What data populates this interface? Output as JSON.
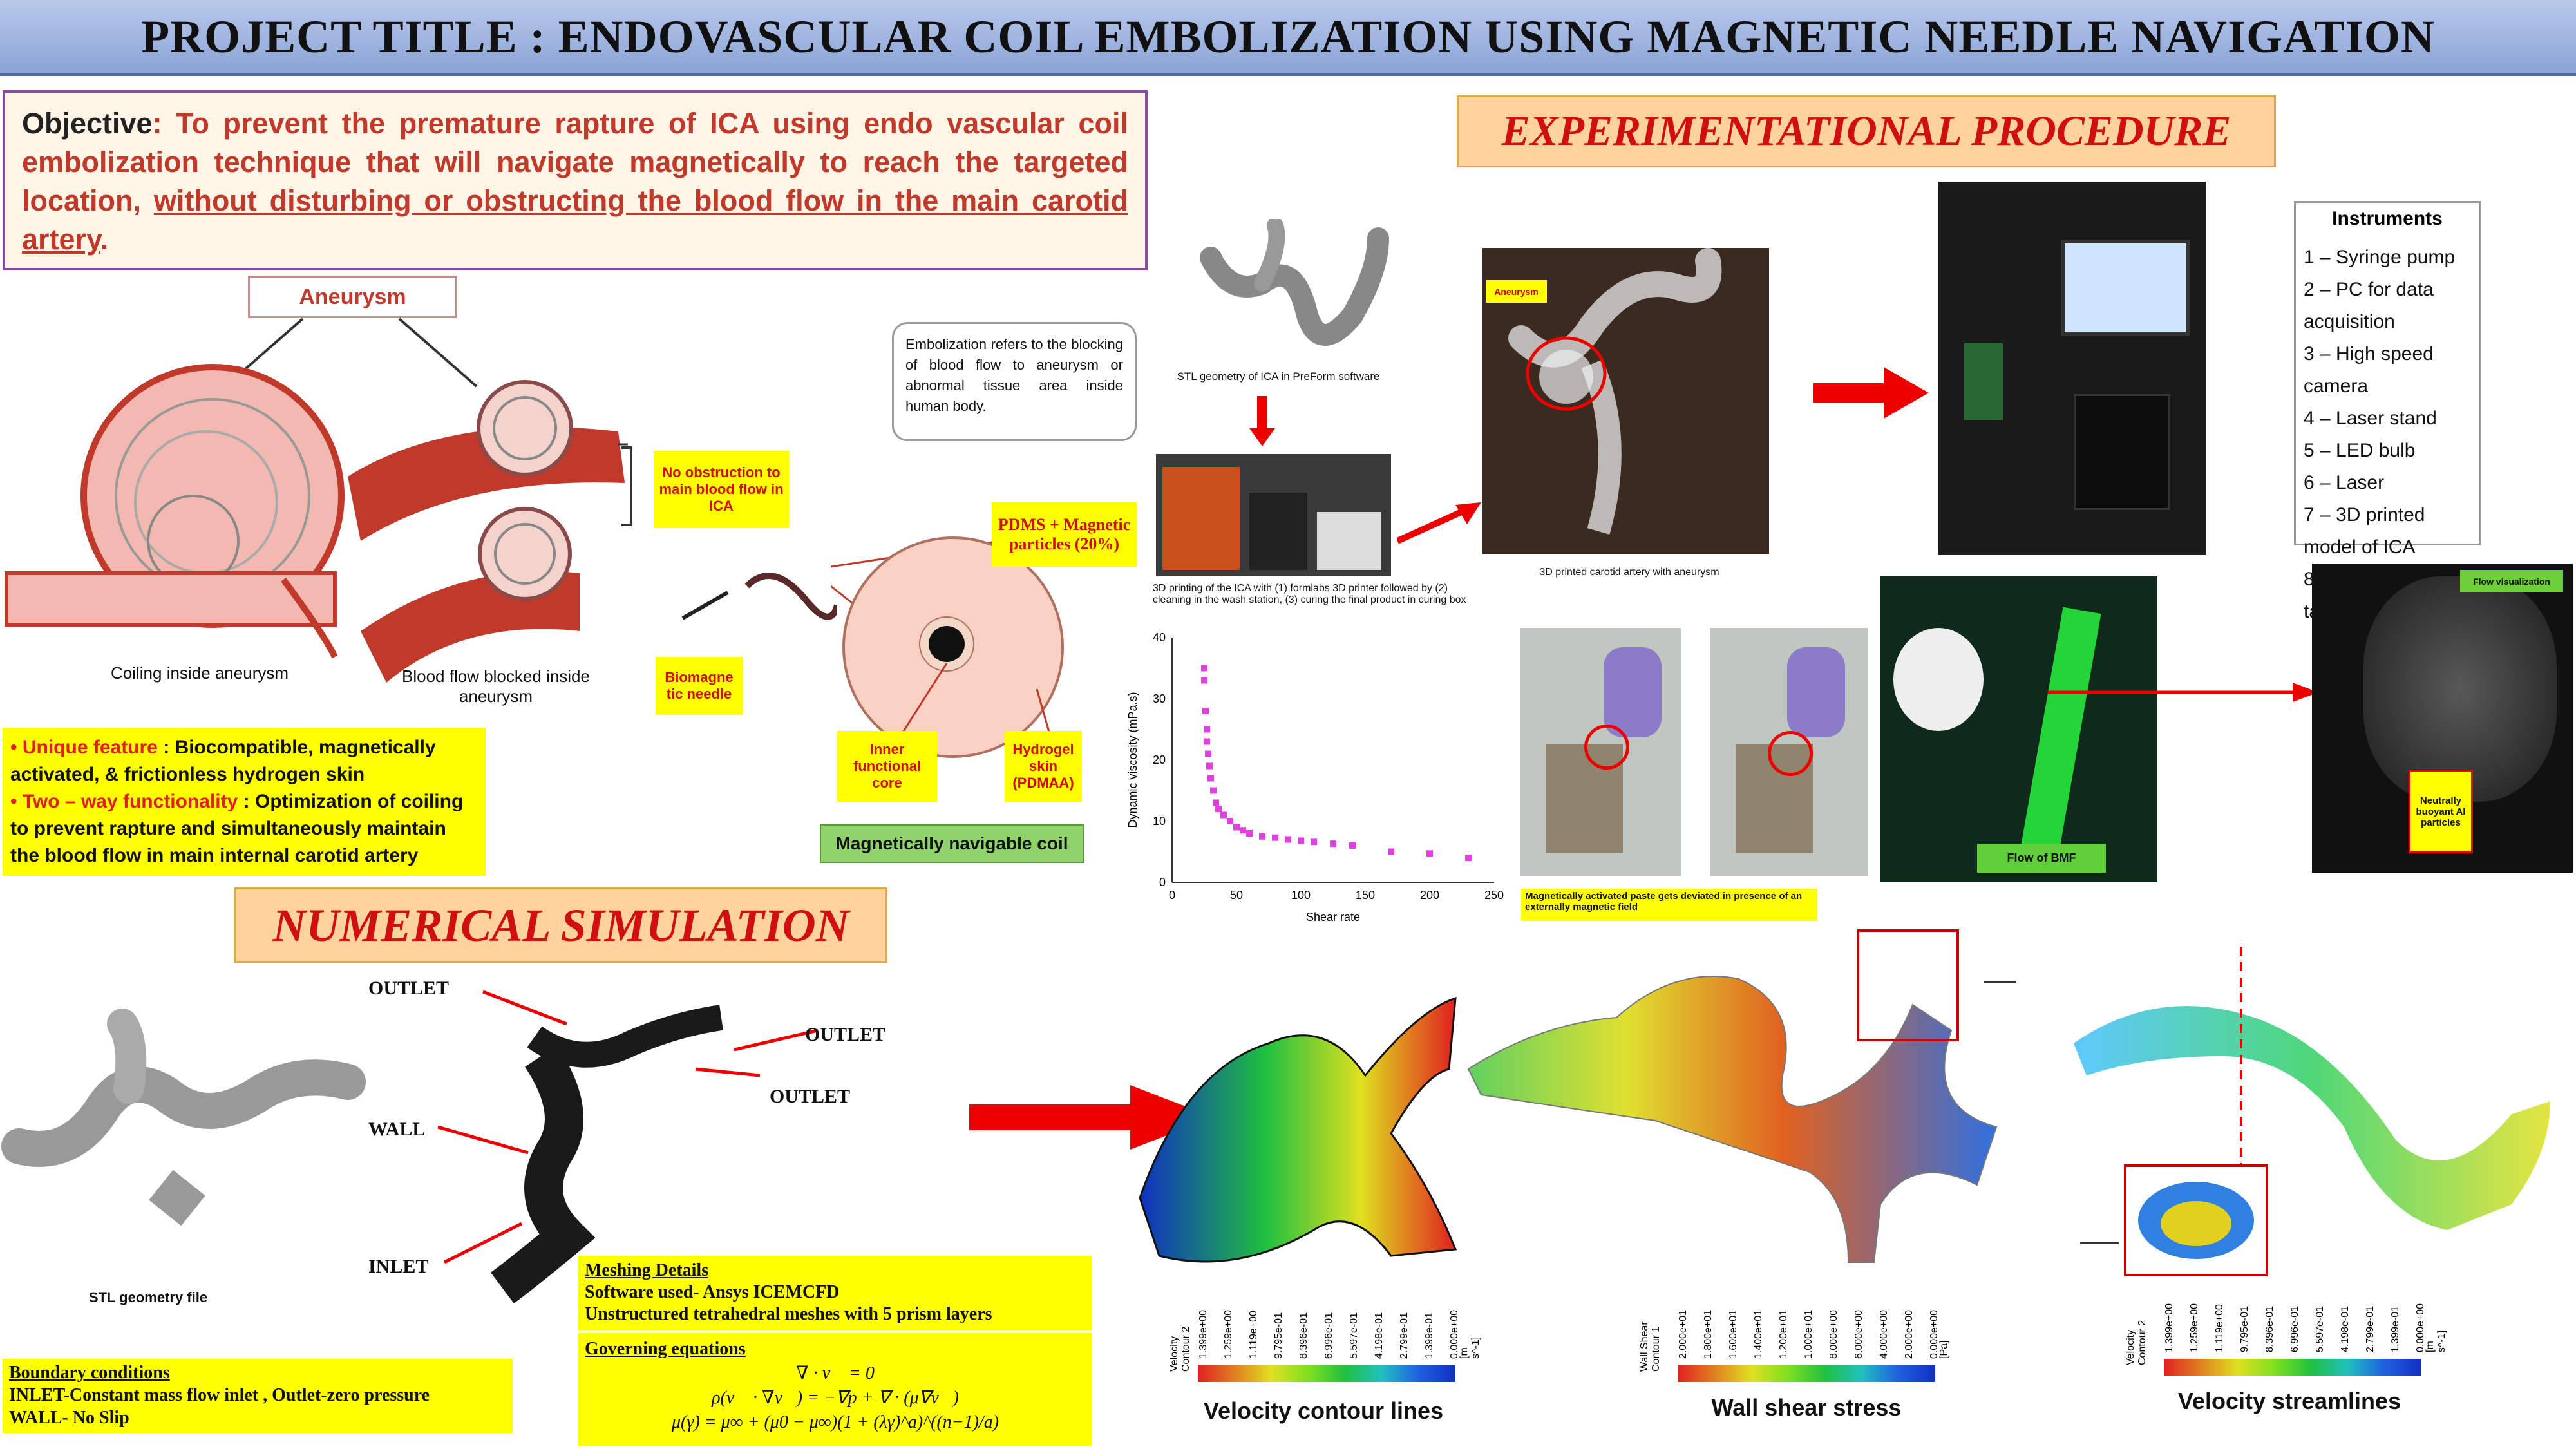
{
  "header": {
    "title": "PROJECT TITLE : ENDOVASCULAR COIL EMBOLIZATION USING MAGNETIC NEEDLE NAVIGATION"
  },
  "objective": {
    "label": "Objective",
    "text": ": To prevent the premature rapture of ICA using endo vascular coil embolization technique that will navigate magnetically to reach the targeted location, ",
    "underlined": "without disturbing or obstructing the blood flow in the main carotid artery",
    "end": "."
  },
  "aneurysm": {
    "title": "Aneurysm",
    "coiling_caption": "Coiling inside aneurysm",
    "blocked_caption": "Blood flow blocked inside aneurysm",
    "no_obstruction": "No obstruction to main blood flow in ICA",
    "biomagnetic_needle": "Biomagne tic needle"
  },
  "coil": {
    "pdms": "PDMS + Magnetic particles (20%)",
    "inner_core": "Inner functional core",
    "hydrogel": "Hydrogel skin (PDMAA)",
    "caption": "Magnetically navigable coil"
  },
  "embolization_note": "Embolization refers to the blocking of blood flow to aneurysm or abnormal tissue area inside human body.",
  "features": {
    "unique_label": "• Unique feature",
    "unique_text": " : Biocompatible, magnetically activated, & frictionless hydrogen skin",
    "two_way_label": "• Two – way functionality",
    "two_way_text": " : Optimization of coiling to prevent rapture and simultaneously maintain the blood flow in main internal carotid artery"
  },
  "experimental": {
    "title": "EXPERIMENTATIONAL PROCEDURE",
    "stl_caption": "STL geometry of ICA in PreForm software",
    "printing_caption": "3D printing of the ICA with (1) formlabs 3D printer followed by (2) cleaning in the wash station, (3) curing the final product in curing box",
    "printed_caption": "3D printed carotid artery with aneurysm",
    "aneurysm_tag": "Aneurysm",
    "paste_caption": "Magnetically activated paste gets deviated in presence of an externally magnetic field",
    "flow_bmf": "Flow of BMF",
    "flow_visualization": "Flow visualization",
    "particles_label": "Neutrally buoyant Al particles"
  },
  "instruments": {
    "title": "Instruments",
    "items": [
      "1 – Syringe pump",
      "2 – PC for data acquisition",
      "3 – High speed camera",
      "4 – Laser stand",
      "5 – LED bulb",
      "6 – Laser",
      "7 – 3D printed model of ICA",
      "8 – Breadboard table"
    ]
  },
  "chart_data": {
    "type": "scatter",
    "xlabel": "Shear rate",
    "ylabel": "Dynamic viscosity (mPa.s)",
    "xlim": [
      0,
      250
    ],
    "ylim": [
      0,
      40
    ],
    "xticks": [
      0,
      50,
      100,
      150,
      200,
      250
    ],
    "yticks": [
      0,
      10,
      20,
      30,
      40
    ],
    "points": [
      [
        25,
        35
      ],
      [
        25,
        33
      ],
      [
        26,
        28
      ],
      [
        27,
        25
      ],
      [
        27,
        23
      ],
      [
        28,
        21
      ],
      [
        29,
        19
      ],
      [
        30,
        17
      ],
      [
        32,
        15
      ],
      [
        34,
        13
      ],
      [
        36,
        12
      ],
      [
        40,
        11
      ],
      [
        45,
        10
      ],
      [
        50,
        9
      ],
      [
        55,
        8.5
      ],
      [
        60,
        8
      ],
      [
        70,
        7.5
      ],
      [
        80,
        7.3
      ],
      [
        90,
        7
      ],
      [
        100,
        6.8
      ],
      [
        110,
        6.6
      ],
      [
        125,
        6.3
      ],
      [
        140,
        6
      ],
      [
        170,
        5
      ],
      [
        200,
        4.7
      ],
      [
        230,
        4
      ]
    ],
    "color": "#e040e0"
  },
  "numerical": {
    "title": "NUMERICAL SIMULATION",
    "outlet1": "OUTLET",
    "outlet2": "OUTLET",
    "outlet3": "OUTLET",
    "wall": "WALL",
    "inlet": "INLET",
    "stl_file": "STL geometry file"
  },
  "meshing": {
    "title": "Meshing Details",
    "line1": "Software used- Ansys ICEMCFD",
    "line2": "Unstructured tetrahedral meshes with 5 prism layers",
    "gov_title": "Governing equations",
    "eq1": "∇ · v⃗ = 0",
    "eq2": "ρ(v⃗ · ∇v⃗) = −∇p + ∇ · (μ∇v⃗)",
    "eq3": "μ(γ̇) = μ∞ + (μ0 − μ∞)(1 + (λγ̇)^a)^((n−1)/a)"
  },
  "boundary": {
    "title": "Boundary conditions",
    "line1": "INLET-Constant mass flow inlet , Outlet-zero pressure",
    "line2": "WALL- No Slip"
  },
  "results": {
    "velocity_contour": "Velocity contour lines",
    "wall_shear": "Wall shear stress",
    "streamlines": "Velocity streamlines",
    "vel_ticks": [
      "1.399e+00",
      "1.259e+00",
      "1.119e+00",
      "9.795e-01",
      "8.396e-01",
      "6.996e-01",
      "5.597e-01",
      "4.198e-01",
      "2.799e-01",
      "1.399e-01",
      "0.000e+00"
    ],
    "wss_ticks": [
      "2.000e+01",
      "1.800e+01",
      "1.600e+01",
      "1.400e+01",
      "1.200e+01",
      "1.000e+01",
      "8.000e+00",
      "6.000e+00",
      "4.000e+00",
      "2.000e+00",
      "0.000e+00"
    ],
    "vel_unit": "[m s^-1]",
    "wss_unit": "[Pa]",
    "vel_name": "Velocity Contour 2",
    "wss_name": "Wall Shear Contour 1"
  }
}
